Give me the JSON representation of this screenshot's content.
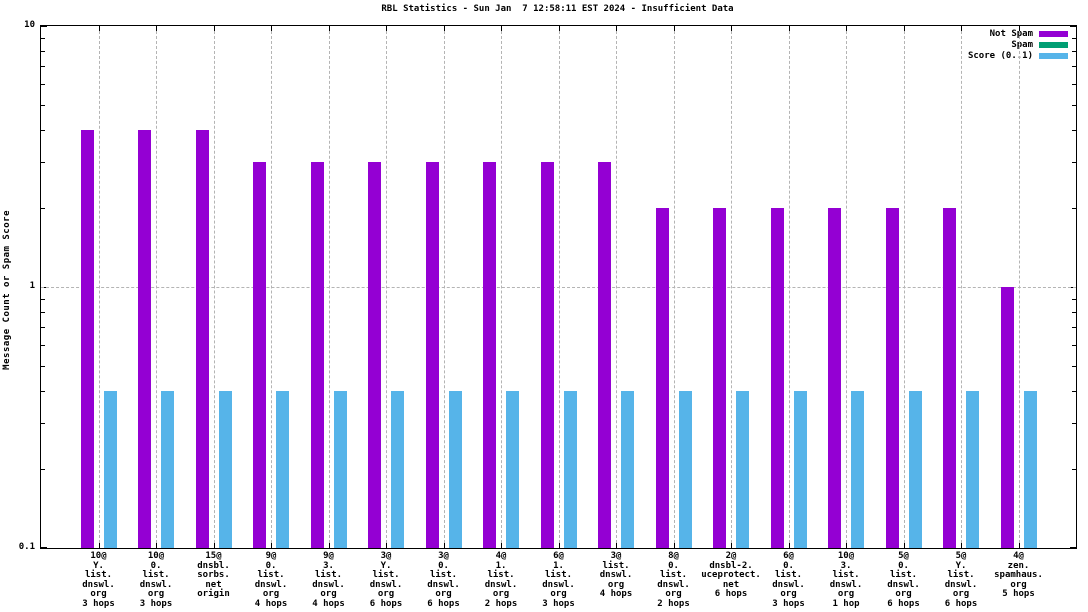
{
  "chart_data": {
    "type": "bar",
    "title": "RBL Statistics - Sun Jan  7 12:58:11 EST 2024 - Insufficient Data",
    "xlabel": "",
    "ylabel": "Message Count or Spam Score",
    "y_scale": "log",
    "ylim": [
      0.1,
      10
    ],
    "y_major_ticks": [
      10,
      1,
      0.1
    ],
    "grid": true,
    "legend_position": "top-right-inside",
    "colors": {
      "not_spam": "#9400d3",
      "spam": "#009e73",
      "score": "#56b4e9",
      "grid": "#b4b4b4"
    },
    "series": [
      {
        "name": "Not Spam",
        "key": "not_spam",
        "color": "#9400d3"
      },
      {
        "name": "Spam",
        "key": "spam",
        "color": "#009e73"
      },
      {
        "name": "Score (0..1)",
        "key": "score",
        "color": "#56b4e9"
      }
    ],
    "groups": [
      {
        "label_lines": [
          "10@",
          "Y.",
          "list.",
          "dnswl.",
          "org",
          "3 hops"
        ],
        "not_spam": 4,
        "spam": 0,
        "score": 0.4
      },
      {
        "label_lines": [
          "10@",
          "0.",
          "list.",
          "dnswl.",
          "org",
          "3 hops"
        ],
        "not_spam": 4,
        "spam": 0,
        "score": 0.4
      },
      {
        "label_lines": [
          "15@",
          "dnsbl.",
          "sorbs.",
          "net",
          "origin"
        ],
        "not_spam": 4,
        "spam": 0,
        "score": 0.4
      },
      {
        "label_lines": [
          "9@",
          "0.",
          "list.",
          "dnswl.",
          "org",
          "4 hops"
        ],
        "not_spam": 3,
        "spam": 0,
        "score": 0.4
      },
      {
        "label_lines": [
          "9@",
          "3.",
          "list.",
          "dnswl.",
          "org",
          "4 hops"
        ],
        "not_spam": 3,
        "spam": 0,
        "score": 0.4
      },
      {
        "label_lines": [
          "3@",
          "Y.",
          "list.",
          "dnswl.",
          "org",
          "6 hops"
        ],
        "not_spam": 3,
        "spam": 0,
        "score": 0.4
      },
      {
        "label_lines": [
          "3@",
          "0.",
          "list.",
          "dnswl.",
          "org",
          "6 hops"
        ],
        "not_spam": 3,
        "spam": 0,
        "score": 0.4
      },
      {
        "label_lines": [
          "4@",
          "1.",
          "list.",
          "dnswl.",
          "org",
          "2 hops"
        ],
        "not_spam": 3,
        "spam": 0,
        "score": 0.4
      },
      {
        "label_lines": [
          "6@",
          "1.",
          "list.",
          "dnswl.",
          "org",
          "3 hops"
        ],
        "not_spam": 3,
        "spam": 0,
        "score": 0.4
      },
      {
        "label_lines": [
          "3@",
          "list.",
          "dnswl.",
          "org",
          "4 hops"
        ],
        "not_spam": 3,
        "spam": 0,
        "score": 0.4
      },
      {
        "label_lines": [
          "8@",
          "0.",
          "list.",
          "dnswl.",
          "org",
          "2 hops"
        ],
        "not_spam": 2,
        "spam": 0,
        "score": 0.4
      },
      {
        "label_lines": [
          "2@",
          "dnsbl-2.",
          "uceprotect.",
          "net",
          "6 hops"
        ],
        "not_spam": 2,
        "spam": 0,
        "score": 0.4
      },
      {
        "label_lines": [
          "6@",
          "0.",
          "list.",
          "dnswl.",
          "org",
          "3 hops"
        ],
        "not_spam": 2,
        "spam": 0,
        "score": 0.4
      },
      {
        "label_lines": [
          "10@",
          "3.",
          "list.",
          "dnswl.",
          "org",
          "1 hop"
        ],
        "not_spam": 2,
        "spam": 0,
        "score": 0.4
      },
      {
        "label_lines": [
          "5@",
          "0.",
          "list.",
          "dnswl.",
          "org",
          "6 hops"
        ],
        "not_spam": 2,
        "spam": 0,
        "score": 0.4
      },
      {
        "label_lines": [
          "5@",
          "Y.",
          "list.",
          "dnswl.",
          "org",
          "6 hops"
        ],
        "not_spam": 2,
        "spam": 0,
        "score": 0.4
      },
      {
        "label_lines": [
          "4@",
          "zen.",
          "spamhaus.",
          "org",
          "5 hops"
        ],
        "not_spam": 1,
        "spam": 0,
        "score": 0.4
      }
    ]
  }
}
